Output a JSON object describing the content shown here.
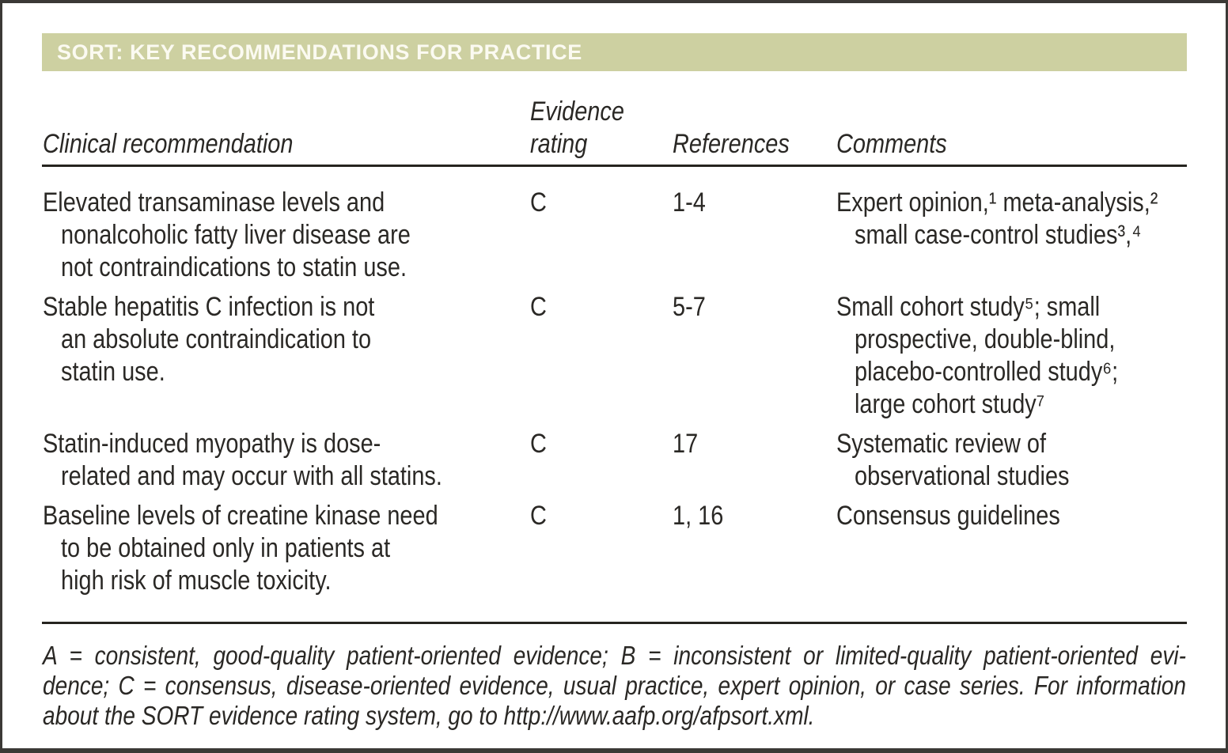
{
  "colors": {
    "header_bg": "#cdd0a1",
    "header_text": "#fbfaf1",
    "body_text": "#2a2825",
    "rule": "#26241f",
    "frame": "#3b3936"
  },
  "header": {
    "title": "SORT: KEY RECOMMENDATIONS FOR PRACTICE"
  },
  "table": {
    "columns": {
      "clinical": "Clinical recommendation",
      "evidence_line1": "Evidence",
      "evidence_line2": "rating",
      "references": "References",
      "comments": "Comments"
    },
    "rows": [
      {
        "recommendation_lines": [
          "Elevated transaminase levels and",
          "nonalcoholic fatty liver disease are",
          "not contraindications to statin use."
        ],
        "evidence_rating": "C",
        "references": "1-4",
        "comment_lines": [
          "Expert opinion,¹ meta-analysis,²",
          "small case-control studies³,⁴"
        ]
      },
      {
        "recommendation_lines": [
          "Stable hepatitis C infection is not",
          "an absolute contraindication to",
          "statin use."
        ],
        "evidence_rating": "C",
        "references": "5-7",
        "comment_lines": [
          "Small cohort study⁵; small",
          "prospective, double-blind,",
          "placebo-controlled study⁶;",
          "large cohort study⁷"
        ]
      },
      {
        "recommendation_lines": [
          "Statin-induced myopathy is dose-",
          "related and may occur with all statins."
        ],
        "evidence_rating": "C",
        "references": "17",
        "comment_lines": [
          "Systematic review of",
          "observational studies"
        ]
      },
      {
        "recommendation_lines": [
          "Baseline levels of creatine kinase need",
          "to be obtained only in patients at",
          "high risk of muscle toxicity."
        ],
        "evidence_rating": "C",
        "references": "1, 16",
        "comment_lines": [
          "Consensus guidelines"
        ]
      }
    ]
  },
  "footnote": {
    "lines": [
      "A = consistent, good-quality patient-oriented evidence; B = inconsistent or limited-quality patient-oriented evi-",
      "dence; C = consensus, disease-oriented evidence, usual practice, expert opinion, or case series. For information",
      "about the SORT evidence rating system, go to http://www.aafp.org/afpsort.xml."
    ]
  }
}
